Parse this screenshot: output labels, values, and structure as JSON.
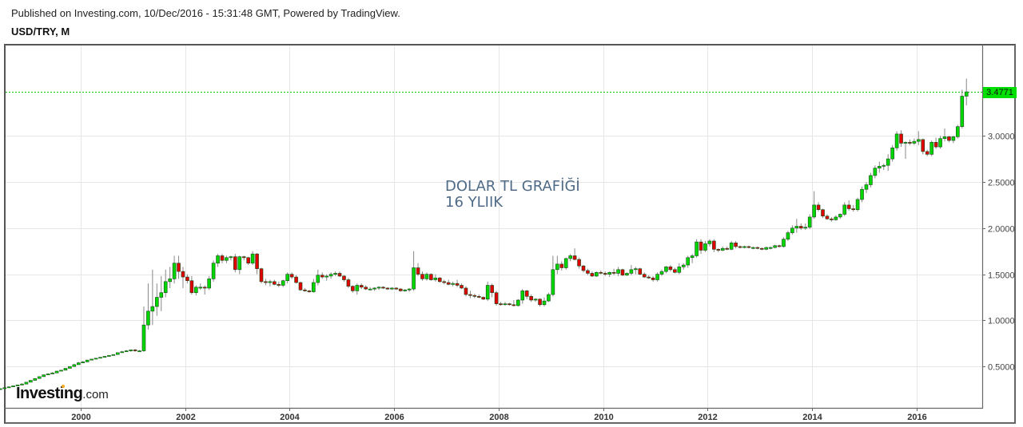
{
  "header": {
    "published": "Published on Investing.com, 10/Dec/2016 - 15:31:48 GMT, Powered by TradingView.",
    "symbol": "USD/TRY, M"
  },
  "annotation": {
    "line1": "DOLAR TL GRAFİĞİ",
    "line2": "16 YLIIK"
  },
  "logo": {
    "main": "Investing",
    "suffix": ".com"
  },
  "price_tag": {
    "value": "3.4771",
    "color": "#00e000"
  },
  "colors": {
    "up": "#00d600",
    "down": "#e00000",
    "wick": "#888888",
    "grid": "#e6e6e6",
    "price_line": "#00c000"
  },
  "chart_data": {
    "type": "candlestick",
    "title": "USD/TRY, M",
    "xlabel": "",
    "ylabel": "",
    "x_ticks": [
      "2000",
      "2002",
      "2004",
      "2006",
      "2008",
      "2010",
      "2012",
      "2014",
      "2016"
    ],
    "y_ticks": [
      "0.5000",
      "1.0000",
      "1.5000",
      "2.0000",
      "2.5000",
      "3.0000"
    ],
    "ylim": [
      0.1,
      3.9
    ],
    "last_price": 3.4771,
    "start": "1998-06",
    "interval": "1M",
    "ohlc": [
      [
        0.25,
        0.26,
        0.25,
        0.26
      ],
      [
        0.26,
        0.27,
        0.26,
        0.27
      ],
      [
        0.27,
        0.28,
        0.27,
        0.28
      ],
      [
        0.28,
        0.29,
        0.28,
        0.29
      ],
      [
        0.29,
        0.3,
        0.29,
        0.3
      ],
      [
        0.3,
        0.32,
        0.3,
        0.31
      ],
      [
        0.31,
        0.33,
        0.31,
        0.33
      ],
      [
        0.33,
        0.35,
        0.33,
        0.35
      ],
      [
        0.35,
        0.37,
        0.35,
        0.37
      ],
      [
        0.37,
        0.39,
        0.37,
        0.39
      ],
      [
        0.39,
        0.41,
        0.39,
        0.41
      ],
      [
        0.41,
        0.42,
        0.41,
        0.42
      ],
      [
        0.42,
        0.44,
        0.42,
        0.43
      ],
      [
        0.43,
        0.45,
        0.43,
        0.45
      ],
      [
        0.45,
        0.46,
        0.45,
        0.46
      ],
      [
        0.46,
        0.48,
        0.46,
        0.48
      ],
      [
        0.48,
        0.5,
        0.48,
        0.5
      ],
      [
        0.5,
        0.53,
        0.5,
        0.52
      ],
      [
        0.52,
        0.55,
        0.52,
        0.54
      ],
      [
        0.54,
        0.56,
        0.54,
        0.55
      ],
      [
        0.55,
        0.57,
        0.55,
        0.57
      ],
      [
        0.57,
        0.58,
        0.57,
        0.58
      ],
      [
        0.58,
        0.59,
        0.58,
        0.59
      ],
      [
        0.59,
        0.6,
        0.59,
        0.6
      ],
      [
        0.6,
        0.61,
        0.6,
        0.61
      ],
      [
        0.61,
        0.62,
        0.61,
        0.62
      ],
      [
        0.62,
        0.63,
        0.62,
        0.63
      ],
      [
        0.63,
        0.65,
        0.63,
        0.65
      ],
      [
        0.65,
        0.67,
        0.65,
        0.66
      ],
      [
        0.66,
        0.68,
        0.66,
        0.67
      ],
      [
        0.67,
        0.68,
        0.66,
        0.68
      ],
      [
        0.68,
        0.69,
        0.66,
        0.67
      ],
      [
        0.67,
        0.68,
        0.66,
        0.67
      ],
      [
        0.67,
        1.15,
        0.66,
        0.95
      ],
      [
        0.95,
        1.4,
        0.9,
        1.1
      ],
      [
        1.1,
        1.55,
        0.95,
        1.15
      ],
      [
        1.15,
        1.4,
        1.05,
        1.25
      ],
      [
        1.25,
        1.48,
        1.1,
        1.3
      ],
      [
        1.3,
        1.55,
        1.25,
        1.42
      ],
      [
        1.42,
        1.58,
        1.35,
        1.45
      ],
      [
        1.45,
        1.7,
        1.4,
        1.62
      ],
      [
        1.62,
        1.7,
        1.45,
        1.53
      ],
      [
        1.53,
        1.58,
        1.35,
        1.47
      ],
      [
        1.47,
        1.5,
        1.4,
        1.43
      ],
      [
        1.43,
        1.48,
        1.28,
        1.3
      ],
      [
        1.3,
        1.38,
        1.27,
        1.36
      ],
      [
        1.36,
        1.4,
        1.33,
        1.36
      ],
      [
        1.36,
        1.38,
        1.28,
        1.35
      ],
      [
        1.35,
        1.48,
        1.33,
        1.45
      ],
      [
        1.45,
        1.65,
        1.42,
        1.62
      ],
      [
        1.62,
        1.72,
        1.58,
        1.7
      ],
      [
        1.7,
        1.72,
        1.62,
        1.65
      ],
      [
        1.65,
        1.7,
        1.62,
        1.68
      ],
      [
        1.68,
        1.7,
        1.65,
        1.69
      ],
      [
        1.69,
        1.72,
        1.52,
        1.55
      ],
      [
        1.55,
        1.7,
        1.5,
        1.69
      ],
      [
        1.69,
        1.7,
        1.65,
        1.68
      ],
      [
        1.68,
        1.69,
        1.6,
        1.62
      ],
      [
        1.62,
        1.75,
        1.6,
        1.72
      ],
      [
        1.72,
        1.73,
        1.5,
        1.56
      ],
      [
        1.56,
        1.57,
        1.4,
        1.42
      ],
      [
        1.42,
        1.45,
        1.38,
        1.41
      ],
      [
        1.41,
        1.44,
        1.37,
        1.42
      ],
      [
        1.42,
        1.44,
        1.38,
        1.39
      ],
      [
        1.39,
        1.42,
        1.36,
        1.38
      ],
      [
        1.38,
        1.44,
        1.36,
        1.43
      ],
      [
        1.43,
        1.52,
        1.4,
        1.5
      ],
      [
        1.5,
        1.52,
        1.45,
        1.47
      ],
      [
        1.47,
        1.49,
        1.4,
        1.41
      ],
      [
        1.41,
        1.42,
        1.32,
        1.33
      ],
      [
        1.33,
        1.35,
        1.31,
        1.32
      ],
      [
        1.32,
        1.33,
        1.3,
        1.31
      ],
      [
        1.31,
        1.45,
        1.3,
        1.41
      ],
      [
        1.41,
        1.55,
        1.38,
        1.49
      ],
      [
        1.49,
        1.52,
        1.45,
        1.47
      ],
      [
        1.47,
        1.5,
        1.43,
        1.48
      ],
      [
        1.48,
        1.52,
        1.45,
        1.5
      ],
      [
        1.5,
        1.53,
        1.48,
        1.51
      ],
      [
        1.51,
        1.53,
        1.47,
        1.48
      ],
      [
        1.48,
        1.49,
        1.42,
        1.44
      ],
      [
        1.44,
        1.46,
        1.35,
        1.37
      ],
      [
        1.37,
        1.38,
        1.3,
        1.32
      ],
      [
        1.32,
        1.4,
        1.28,
        1.38
      ],
      [
        1.38,
        1.4,
        1.34,
        1.36
      ],
      [
        1.36,
        1.38,
        1.33,
        1.34
      ],
      [
        1.34,
        1.36,
        1.33,
        1.34
      ],
      [
        1.34,
        1.36,
        1.32,
        1.35
      ],
      [
        1.35,
        1.37,
        1.33,
        1.36
      ],
      [
        1.36,
        1.37,
        1.34,
        1.35
      ],
      [
        1.35,
        1.36,
        1.33,
        1.34
      ],
      [
        1.34,
        1.36,
        1.33,
        1.35
      ],
      [
        1.35,
        1.36,
        1.33,
        1.34
      ],
      [
        1.34,
        1.35,
        1.31,
        1.32
      ],
      [
        1.32,
        1.34,
        1.31,
        1.33
      ],
      [
        1.33,
        1.35,
        1.31,
        1.34
      ],
      [
        1.34,
        1.75,
        1.32,
        1.57
      ],
      [
        1.57,
        1.62,
        1.48,
        1.5
      ],
      [
        1.5,
        1.53,
        1.43,
        1.45
      ],
      [
        1.45,
        1.52,
        1.43,
        1.5
      ],
      [
        1.5,
        1.51,
        1.43,
        1.44
      ],
      [
        1.44,
        1.5,
        1.42,
        1.46
      ],
      [
        1.46,
        1.47,
        1.41,
        1.42
      ],
      [
        1.42,
        1.44,
        1.39,
        1.41
      ],
      [
        1.41,
        1.44,
        1.38,
        1.39
      ],
      [
        1.39,
        1.42,
        1.37,
        1.4
      ],
      [
        1.4,
        1.44,
        1.36,
        1.38
      ],
      [
        1.38,
        1.4,
        1.34,
        1.35
      ],
      [
        1.35,
        1.37,
        1.26,
        1.28
      ],
      [
        1.28,
        1.32,
        1.24,
        1.27
      ],
      [
        1.27,
        1.29,
        1.24,
        1.26
      ],
      [
        1.26,
        1.28,
        1.24,
        1.25
      ],
      [
        1.25,
        1.26,
        1.22,
        1.23
      ],
      [
        1.23,
        1.42,
        1.21,
        1.38
      ],
      [
        1.38,
        1.4,
        1.25,
        1.3
      ],
      [
        1.3,
        1.32,
        1.16,
        1.18
      ],
      [
        1.18,
        1.2,
        1.16,
        1.17
      ],
      [
        1.17,
        1.2,
        1.16,
        1.18
      ],
      [
        1.18,
        1.19,
        1.16,
        1.17
      ],
      [
        1.17,
        1.22,
        1.15,
        1.16
      ],
      [
        1.16,
        1.23,
        1.15,
        1.22
      ],
      [
        1.22,
        1.34,
        1.18,
        1.32
      ],
      [
        1.32,
        1.33,
        1.23,
        1.26
      ],
      [
        1.26,
        1.28,
        1.2,
        1.22
      ],
      [
        1.22,
        1.24,
        1.2,
        1.23
      ],
      [
        1.23,
        1.24,
        1.15,
        1.17
      ],
      [
        1.17,
        1.25,
        1.15,
        1.21
      ],
      [
        1.21,
        1.3,
        1.2,
        1.28
      ],
      [
        1.28,
        1.7,
        1.26,
        1.55
      ],
      [
        1.55,
        1.7,
        1.5,
        1.61
      ],
      [
        1.61,
        1.64,
        1.54,
        1.57
      ],
      [
        1.57,
        1.68,
        1.55,
        1.67
      ],
      [
        1.67,
        1.72,
        1.64,
        1.7
      ],
      [
        1.7,
        1.78,
        1.65,
        1.66
      ],
      [
        1.66,
        1.68,
        1.56,
        1.59
      ],
      [
        1.59,
        1.6,
        1.52,
        1.54
      ],
      [
        1.54,
        1.56,
        1.49,
        1.51
      ],
      [
        1.51,
        1.53,
        1.47,
        1.48
      ],
      [
        1.48,
        1.53,
        1.47,
        1.52
      ],
      [
        1.52,
        1.54,
        1.5,
        1.51
      ],
      [
        1.51,
        1.53,
        1.48,
        1.5
      ],
      [
        1.5,
        1.53,
        1.47,
        1.52
      ],
      [
        1.52,
        1.56,
        1.49,
        1.51
      ],
      [
        1.51,
        1.58,
        1.48,
        1.55
      ],
      [
        1.55,
        1.56,
        1.48,
        1.49
      ],
      [
        1.49,
        1.52,
        1.48,
        1.51
      ],
      [
        1.51,
        1.6,
        1.49,
        1.55
      ],
      [
        1.55,
        1.58,
        1.5,
        1.56
      ],
      [
        1.56,
        1.57,
        1.49,
        1.5
      ],
      [
        1.5,
        1.52,
        1.46,
        1.47
      ],
      [
        1.47,
        1.49,
        1.45,
        1.46
      ],
      [
        1.46,
        1.48,
        1.42,
        1.44
      ],
      [
        1.44,
        1.52,
        1.42,
        1.5
      ],
      [
        1.5,
        1.55,
        1.48,
        1.53
      ],
      [
        1.53,
        1.59,
        1.51,
        1.58
      ],
      [
        1.58,
        1.6,
        1.53,
        1.55
      ],
      [
        1.55,
        1.57,
        1.51,
        1.52
      ],
      [
        1.52,
        1.62,
        1.5,
        1.58
      ],
      [
        1.58,
        1.62,
        1.55,
        1.6
      ],
      [
        1.6,
        1.7,
        1.57,
        1.68
      ],
      [
        1.68,
        1.72,
        1.62,
        1.7
      ],
      [
        1.7,
        1.88,
        1.68,
        1.85
      ],
      [
        1.85,
        1.88,
        1.72,
        1.76
      ],
      [
        1.76,
        1.86,
        1.74,
        1.83
      ],
      [
        1.83,
        1.88,
        1.8,
        1.86
      ],
      [
        1.86,
        1.88,
        1.74,
        1.77
      ],
      [
        1.77,
        1.78,
        1.74,
        1.76
      ],
      [
        1.76,
        1.8,
        1.75,
        1.78
      ],
      [
        1.78,
        1.8,
        1.76,
        1.77
      ],
      [
        1.77,
        1.86,
        1.76,
        1.84
      ],
      [
        1.84,
        1.86,
        1.78,
        1.8
      ],
      [
        1.8,
        1.81,
        1.78,
        1.79
      ],
      [
        1.79,
        1.81,
        1.78,
        1.8
      ],
      [
        1.8,
        1.81,
        1.78,
        1.79
      ],
      [
        1.79,
        1.8,
        1.77,
        1.79
      ],
      [
        1.79,
        1.8,
        1.77,
        1.78
      ],
      [
        1.78,
        1.79,
        1.76,
        1.77
      ],
      [
        1.77,
        1.8,
        1.76,
        1.79
      ],
      [
        1.79,
        1.8,
        1.77,
        1.79
      ],
      [
        1.79,
        1.82,
        1.78,
        1.81
      ],
      [
        1.81,
        1.82,
        1.79,
        1.8
      ],
      [
        1.8,
        1.9,
        1.79,
        1.88
      ],
      [
        1.88,
        1.97,
        1.86,
        1.95
      ],
      [
        1.95,
        2.03,
        1.93,
        2.0
      ],
      [
        2.0,
        2.1,
        1.95,
        2.02
      ],
      [
        2.02,
        2.05,
        1.98,
        2.0
      ],
      [
        2.0,
        2.05,
        1.98,
        2.01
      ],
      [
        2.01,
        2.15,
        1.99,
        2.12
      ],
      [
        2.12,
        2.4,
        2.1,
        2.25
      ],
      [
        2.25,
        2.28,
        2.18,
        2.2
      ],
      [
        2.2,
        2.21,
        2.11,
        2.13
      ],
      [
        2.13,
        2.15,
        2.09,
        2.1
      ],
      [
        2.1,
        2.12,
        2.07,
        2.09
      ],
      [
        2.09,
        2.14,
        2.08,
        2.12
      ],
      [
        2.12,
        2.16,
        2.1,
        2.15
      ],
      [
        2.15,
        2.28,
        2.13,
        2.25
      ],
      [
        2.25,
        2.3,
        2.19,
        2.21
      ],
      [
        2.21,
        2.25,
        2.18,
        2.2
      ],
      [
        2.2,
        2.33,
        2.18,
        2.31
      ],
      [
        2.31,
        2.45,
        2.28,
        2.42
      ],
      [
        2.42,
        2.5,
        2.38,
        2.47
      ],
      [
        2.47,
        2.6,
        2.44,
        2.57
      ],
      [
        2.57,
        2.68,
        2.54,
        2.65
      ],
      [
        2.65,
        2.72,
        2.6,
        2.67
      ],
      [
        2.67,
        2.7,
        2.63,
        2.68
      ],
      [
        2.68,
        2.8,
        2.62,
        2.75
      ],
      [
        2.75,
        2.9,
        2.72,
        2.87
      ],
      [
        2.87,
        3.05,
        2.84,
        3.02
      ],
      [
        3.02,
        3.06,
        2.88,
        2.92
      ],
      [
        2.92,
        2.94,
        2.75,
        2.93
      ],
      [
        2.93,
        2.96,
        2.9,
        2.92
      ],
      [
        2.92,
        2.97,
        2.9,
        2.94
      ],
      [
        2.94,
        3.05,
        2.9,
        2.96
      ],
      [
        2.96,
        2.97,
        2.8,
        2.83
      ],
      [
        2.83,
        2.85,
        2.78,
        2.8
      ],
      [
        2.8,
        2.95,
        2.78,
        2.93
      ],
      [
        2.93,
        2.98,
        2.86,
        2.88
      ],
      [
        2.88,
        3.0,
        2.86,
        2.97
      ],
      [
        2.97,
        3.08,
        2.94,
        2.99
      ],
      [
        2.99,
        3.0,
        2.93,
        2.95
      ],
      [
        2.95,
        3.0,
        2.92,
        2.99
      ],
      [
        2.99,
        3.12,
        2.97,
        3.1
      ],
      [
        3.1,
        3.5,
        3.08,
        3.43
      ],
      [
        3.43,
        3.62,
        3.33,
        3.4771
      ]
    ]
  }
}
